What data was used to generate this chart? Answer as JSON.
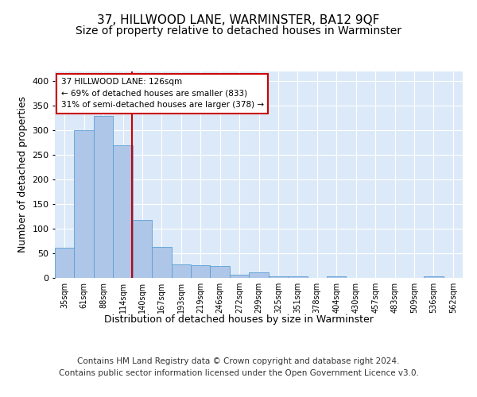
{
  "title": "37, HILLWOOD LANE, WARMINSTER, BA12 9QF",
  "subtitle": "Size of property relative to detached houses in Warminster",
  "xlabel": "Distribution of detached houses by size in Warminster",
  "ylabel": "Number of detached properties",
  "categories": [
    "35sqm",
    "61sqm",
    "88sqm",
    "114sqm",
    "140sqm",
    "167sqm",
    "193sqm",
    "219sqm",
    "246sqm",
    "272sqm",
    "299sqm",
    "325sqm",
    "351sqm",
    "378sqm",
    "404sqm",
    "430sqm",
    "457sqm",
    "483sqm",
    "509sqm",
    "536sqm",
    "562sqm"
  ],
  "values": [
    62,
    300,
    330,
    270,
    118,
    63,
    27,
    26,
    25,
    6,
    12,
    4,
    4,
    0,
    3,
    0,
    0,
    0,
    0,
    3,
    0
  ],
  "bar_color": "#aec6e8",
  "bar_edgecolor": "#5a9fd4",
  "vline_x": 3.46,
  "vline_color": "#cc0000",
  "annotation_text": "37 HILLWOOD LANE: 126sqm\n← 69% of detached houses are smaller (833)\n31% of semi-detached houses are larger (378) →",
  "annotation_box_edgecolor": "#cc0000",
  "annotation_box_facecolor": "#ffffff",
  "ylim": [
    0,
    420
  ],
  "yticks": [
    0,
    50,
    100,
    150,
    200,
    250,
    300,
    350,
    400
  ],
  "footer_text": "Contains HM Land Registry data © Crown copyright and database right 2024.\nContains public sector information licensed under the Open Government Licence v3.0.",
  "background_color": "#dce9f8",
  "fig_background_color": "#ffffff",
  "title_fontsize": 11,
  "subtitle_fontsize": 10,
  "xlabel_fontsize": 9,
  "ylabel_fontsize": 9,
  "footer_fontsize": 7.5,
  "tick_fontsize": 7,
  "ytick_fontsize": 8
}
